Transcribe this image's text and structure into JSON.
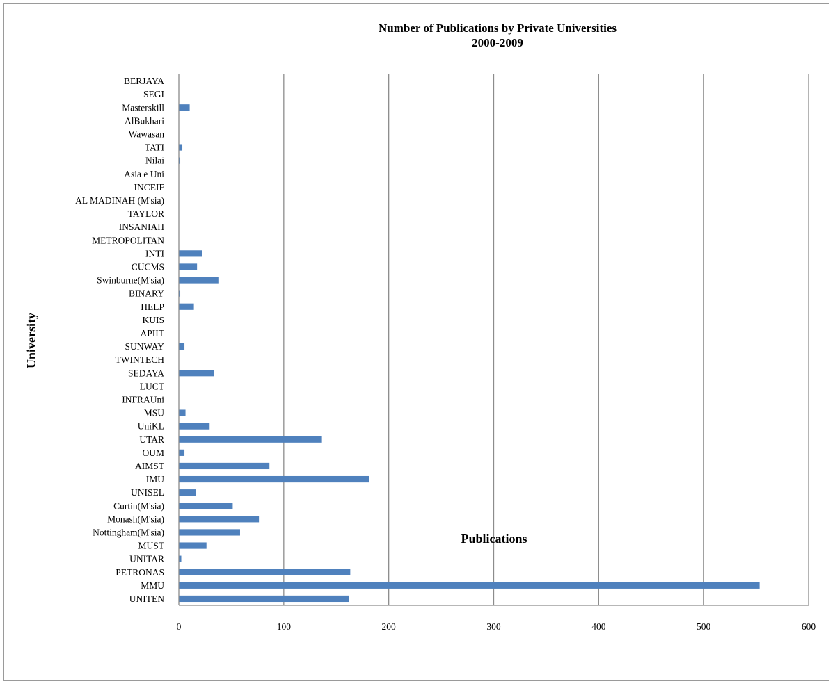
{
  "chart_data": {
    "type": "bar",
    "orientation": "horizontal",
    "title": "Number of Publications by Private Universities",
    "subtitle": "2000-2009",
    "xlabel": "Publications",
    "ylabel": "University",
    "xlim": [
      0,
      600
    ],
    "xticks": [
      "0",
      "100",
      "200",
      "300",
      "400",
      "500",
      "600"
    ],
    "grid": "vertical",
    "bar_color": "#4f81bd",
    "categories": [
      "UNITEN",
      "MMU",
      "PETRONAS",
      "UNITAR",
      "MUST",
      "Nottingham(M'sia)",
      "Monash(M'sia)",
      "Curtin(M'sia)",
      "UNISEL",
      "IMU",
      "AIMST",
      "OUM",
      "UTAR",
      "UniKL",
      "MSU",
      "INFRAUni",
      "LUCT",
      "SEDAYA",
      "TWINTECH",
      "SUNWAY",
      "APIIT",
      "KUIS",
      "HELP",
      "BINARY",
      "Swinburne(M'sia)",
      "CUCMS",
      "INTI",
      "METROPOLITAN",
      "INSANIAH",
      "TAYLOR",
      "AL MADINAH (M'sia)",
      "INCEIF",
      "Asia e Uni",
      "Nilai",
      "TATI",
      "Wawasan",
      "AlBukhari",
      "Masterskill",
      "SEGI",
      "BERJAYA"
    ],
    "values": [
      162,
      553,
      163,
      2,
      26,
      58,
      76,
      51,
      16,
      181,
      86,
      5,
      136,
      29,
      6,
      0,
      0,
      33,
      0,
      5,
      0,
      0,
      14,
      1,
      38,
      17,
      22,
      0,
      0,
      0,
      0,
      0,
      0,
      1,
      3,
      0,
      0,
      10,
      0,
      0
    ]
  }
}
